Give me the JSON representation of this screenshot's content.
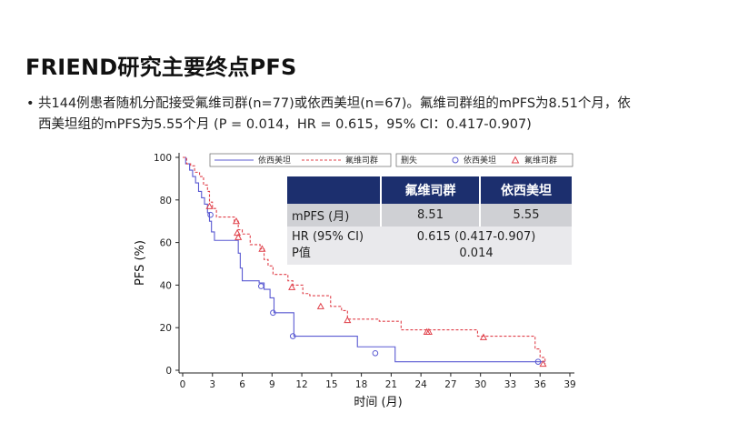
{
  "title": "FRIEND研究主要终点PFS",
  "bullet_line1": "共144例患者随机分配接受氟维司群(n=77)或依西美坦(n=67)。氟维司群组的mPFS为8.51个月，依",
  "bullet_line2": "西美坦组的mPFS为5.55个月 (P = 0.014，HR = 0.615，95% CI：0.417-0.907)",
  "legend": {
    "series_a": "依西美坦",
    "series_b": "氟维司群",
    "censor_label": "删失",
    "censor_a": "依西美坦",
    "censor_b": "氟维司群"
  },
  "table": {
    "col1": "氟维司群",
    "col2": "依西美坦",
    "row1_label": "mPFS (月)",
    "row1_v1": "8.51",
    "row1_v2": "5.55",
    "row2_label1": "HR (95% CI)",
    "row2_label2": "P值",
    "row2_v1": "0.615 (0.417-0.907)",
    "row2_v2": "0.014"
  },
  "colors": {
    "series_a": "#5a5ad2",
    "series_b": "#e0404a",
    "header": "#1c2f6e"
  },
  "chart_data": {
    "type": "line",
    "xlabel": "时间 (月)",
    "ylabel": "PFS (%)",
    "xlim": [
      0,
      39
    ],
    "ylim": [
      0,
      100
    ],
    "xticks": [
      0,
      3,
      6,
      9,
      12,
      15,
      18,
      21,
      24,
      27,
      30,
      33,
      36,
      39
    ],
    "yticks": [
      0,
      20,
      40,
      60,
      80,
      100
    ],
    "legend_position": "top",
    "series": [
      {
        "name": "依西美坦",
        "style": "solid",
        "x": [
          0,
          0.3,
          0.7,
          1.0,
          1.3,
          1.6,
          1.9,
          2.2,
          2.5,
          2.7,
          2.9,
          3.2,
          5.4,
          5.6,
          5.8,
          6.0,
          7.7,
          8.2,
          8.8,
          9.2,
          10.9,
          11.2,
          17.3,
          17.6,
          21.4,
          36.5
        ],
        "y": [
          100,
          97,
          94,
          91,
          88,
          84,
          81,
          78,
          74,
          70,
          65,
          61,
          61,
          55,
          48,
          42,
          41,
          38,
          34,
          27,
          27,
          16,
          16,
          11,
          4,
          4
        ],
        "censor_x": [
          2.8,
          7.9,
          9.1,
          11.1,
          19.4,
          35.8
        ],
        "censor_y": [
          73,
          39.5,
          27,
          16,
          8,
          4
        ]
      },
      {
        "name": "氟维司群",
        "style": "dashed",
        "x": [
          0,
          0.4,
          0.8,
          1.2,
          1.7,
          2.1,
          2.5,
          2.7,
          3.0,
          3.4,
          5.2,
          5.6,
          6.0,
          6.8,
          7.8,
          8.2,
          8.6,
          9.1,
          10.6,
          11.1,
          12.1,
          12.8,
          14.9,
          16.0,
          16.6,
          19.8,
          22.0,
          29.7,
          35.5,
          36.0,
          36.5
        ],
        "y": [
          100,
          97,
          96,
          93,
          91,
          87,
          84,
          79,
          76,
          72,
          70,
          66,
          64,
          59,
          57,
          52,
          49,
          45,
          42,
          40,
          36,
          35,
          30,
          28,
          24,
          23,
          19,
          16,
          10,
          6,
          3
        ],
        "censor_x": [
          2.7,
          5.4,
          5.5,
          5.6,
          8.0,
          11.0,
          13.9,
          16.6,
          24.6,
          24.8,
          30.3,
          36.3
        ],
        "censor_y": [
          77,
          70,
          64.5,
          62.5,
          57,
          39,
          30,
          23.5,
          18,
          18,
          15.5,
          3
        ]
      }
    ]
  }
}
